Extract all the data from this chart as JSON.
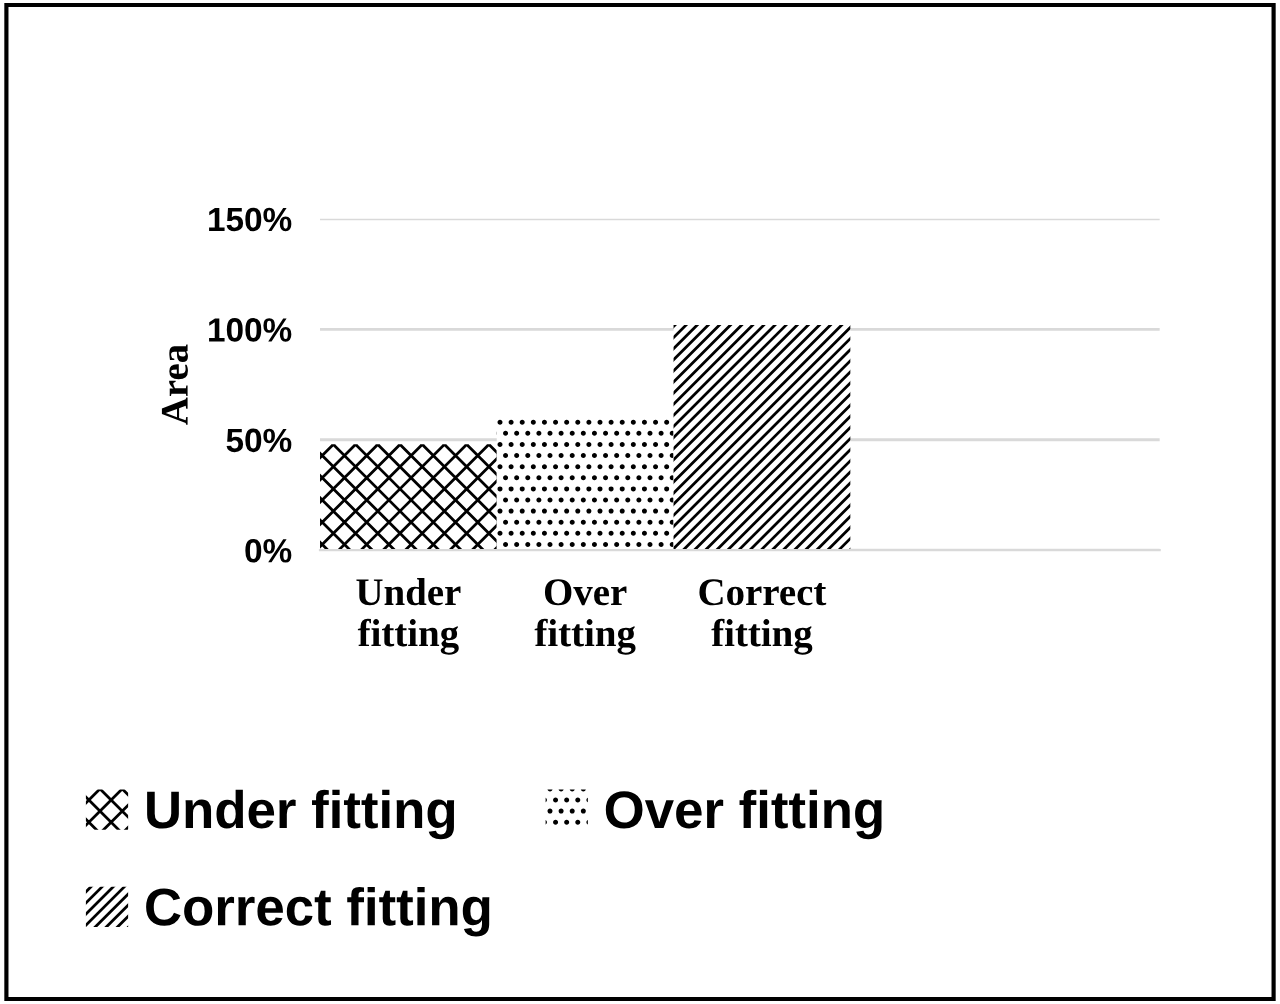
{
  "chart_data": {
    "type": "bar",
    "ylabel": "Area",
    "categories": [
      "Under fitting",
      "Over fitting",
      "Correct fitting"
    ],
    "series": [
      {
        "name": "Under fitting",
        "color": "#000000",
        "values": [
          48,
          null,
          null
        ]
      },
      {
        "name": "Over fitting",
        "color": "#000000",
        "values": [
          null,
          60,
          null
        ]
      },
      {
        "name": "Correct fitting",
        "color": "#000000",
        "values": [
          null,
          null,
          102
        ]
      }
    ],
    "ylim": [
      0,
      150
    ],
    "yticks": [
      {
        "value": 0,
        "label": "0%"
      },
      {
        "value": 50,
        "label": "50%"
      },
      {
        "value": 100,
        "label": "100%"
      },
      {
        "value": 150,
        "label": "150%"
      }
    ],
    "grid": "y",
    "legend": "bottom"
  }
}
